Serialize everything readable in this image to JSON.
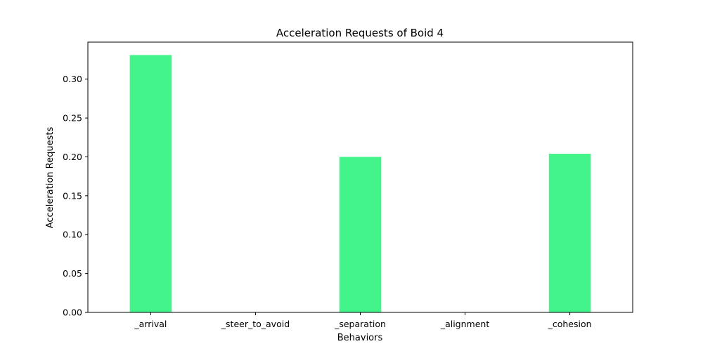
{
  "chart_data": {
    "type": "bar",
    "title": "Acceleration Requests of Boid 4",
    "xlabel": "Behaviors",
    "ylabel": "Acceleration Requests",
    "categories": [
      "_arrival",
      "_steer_to_avoid",
      "_separation",
      "_alignment",
      "_cohesion"
    ],
    "values": [
      0.331,
      0.0,
      0.2,
      0.0,
      0.204
    ],
    "ylim": [
      0,
      0.3476
    ],
    "yticks": [
      "0.00",
      "0.05",
      "0.10",
      "0.15",
      "0.20",
      "0.25",
      "0.30"
    ],
    "bar_color": "#42f48a",
    "grid": false,
    "legend": "none"
  }
}
